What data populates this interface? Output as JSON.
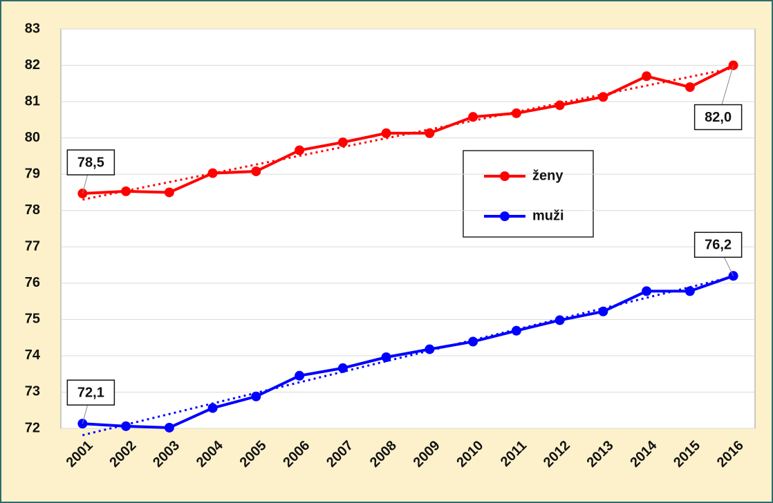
{
  "chart_data": {
    "type": "line",
    "categories": [
      "2001",
      "2002",
      "2003",
      "2004",
      "2005",
      "2006",
      "2007",
      "2008",
      "2009",
      "2010",
      "2011",
      "2012",
      "2013",
      "2014",
      "2015",
      "2016"
    ],
    "series": [
      {
        "name": "ženy",
        "color": "#ff0000",
        "values": [
          78.47,
          78.53,
          78.5,
          79.03,
          79.08,
          79.66,
          79.88,
          80.13,
          80.13,
          80.58,
          80.68,
          80.9,
          81.13,
          81.7,
          81.4,
          82.0
        ],
        "value_labels": [
          "78,5",
          null,
          null,
          null,
          null,
          null,
          null,
          null,
          null,
          null,
          null,
          null,
          null,
          null,
          null,
          "82,0"
        ]
      },
      {
        "name": "muži",
        "color": "#0000ff",
        "values": [
          72.13,
          72.06,
          72.02,
          72.56,
          72.88,
          73.45,
          73.66,
          73.96,
          74.18,
          74.39,
          74.69,
          74.98,
          75.22,
          75.78,
          75.78,
          76.2
        ],
        "value_labels": [
          "72,1",
          null,
          null,
          null,
          null,
          null,
          null,
          null,
          null,
          null,
          null,
          null,
          null,
          null,
          null,
          "76,2"
        ]
      }
    ],
    "ylim": [
      72,
      83
    ],
    "yticks": [
      72,
      73,
      74,
      75,
      76,
      77,
      78,
      79,
      80,
      81,
      82,
      83
    ],
    "grid": true,
    "trendline": true
  }
}
